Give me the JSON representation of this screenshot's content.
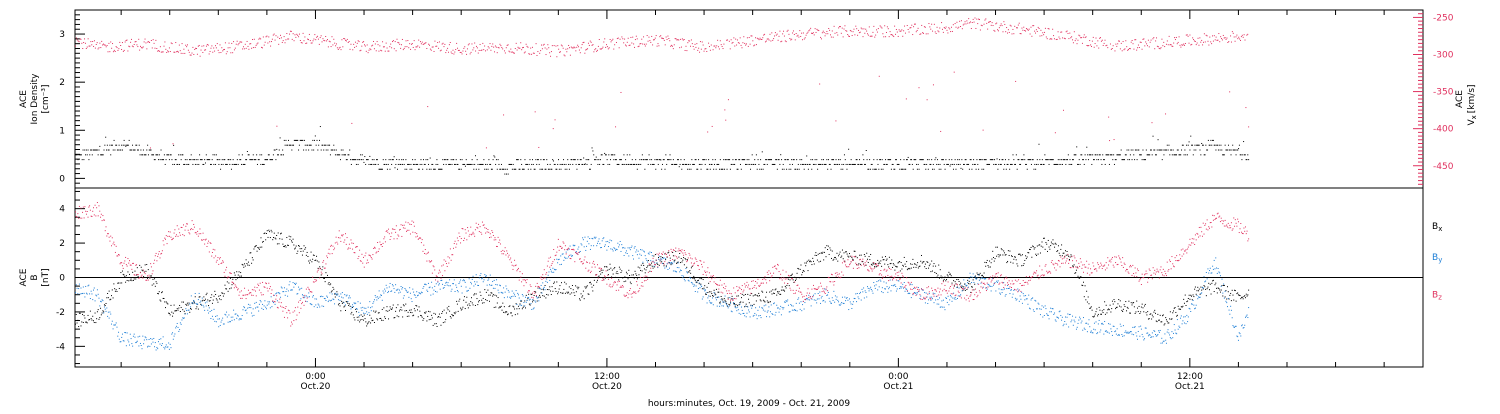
{
  "colors": {
    "density": "#000000",
    "vx": "#e0305e",
    "bx": "#000000",
    "by": "#1f7fd6",
    "bz": "#e0305e"
  },
  "xaxis": {
    "caption": "hours:minutes, Oct. 19, 2009 - Oct. 21, 2009",
    "unit": "hours since Oct. 19, 2009 00:00",
    "ticks": [
      {
        "x": 24,
        "time": "0:00",
        "date": "Oct.20"
      },
      {
        "x": 36,
        "time": "12:00",
        "date": "Oct.20"
      },
      {
        "x": 48,
        "time": "0:00",
        "date": "Oct.21"
      },
      {
        "x": 60,
        "time": "12:00",
        "date": "Oct.21"
      }
    ]
  },
  "chart_data": [
    {
      "type": "scatter",
      "xlim": [
        14.1,
        69.6
      ],
      "ylim_left": [
        -0.2,
        3.5
      ],
      "ylim_right": [
        -480,
        -240
      ],
      "left_label": [
        "ACE",
        "Ion Density",
        "[cm⁻³]"
      ],
      "right_label": [
        "ACE",
        "V",
        "x",
        "[km/s]"
      ],
      "left_ticks": [
        {
          "y": 0,
          "label": "0"
        },
        {
          "y": 1,
          "label": "1"
        },
        {
          "y": 2,
          "label": "2"
        },
        {
          "y": 3,
          "label": "3"
        }
      ],
      "right_ticks": [
        {
          "y": -250,
          "label": "-250"
        },
        {
          "y": -300,
          "label": "-300"
        },
        {
          "y": -350,
          "label": "-350"
        },
        {
          "y": -400,
          "label": "-400"
        },
        {
          "y": -450,
          "label": "-450"
        }
      ],
      "series": [
        {
          "key": "density",
          "axis": "left",
          "color": "#000000",
          "x": [
            14.1,
            16,
            18,
            20,
            22,
            23,
            24,
            26,
            28,
            30,
            32,
            34,
            36,
            38,
            40,
            42,
            44,
            46,
            48,
            50,
            52,
            54,
            56,
            58,
            60,
            61,
            62,
            62.4
          ],
          "y": [
            0.45,
            0.7,
            0.4,
            0.35,
            0.4,
            0.75,
            0.7,
            0.35,
            0.3,
            0.3,
            0.25,
            0.3,
            0.4,
            0.35,
            0.3,
            0.35,
            0.3,
            0.35,
            0.3,
            0.3,
            0.35,
            0.35,
            0.4,
            0.5,
            0.6,
            0.65,
            0.55,
            0.5
          ]
        },
        {
          "key": "vx",
          "axis": "right",
          "color": "#e0305e",
          "x": [
            14.1,
            15,
            17,
            19,
            21,
            23,
            24,
            26,
            28,
            30,
            32,
            34,
            36,
            38,
            40,
            42,
            44,
            46,
            48,
            50,
            51,
            53,
            55,
            57,
            59,
            61,
            62,
            62.4
          ],
          "y": [
            -280,
            -290,
            -285,
            -295,
            -288,
            -275,
            -280,
            -290,
            -285,
            -292,
            -290,
            -295,
            -285,
            -280,
            -290,
            -280,
            -272,
            -268,
            -268,
            -263,
            -257,
            -265,
            -275,
            -288,
            -283,
            -278,
            -275,
            -272
          ]
        }
      ]
    },
    {
      "type": "scatter",
      "xlim": [
        14.1,
        69.6
      ],
      "ylim": [
        -5.2,
        5.2
      ],
      "left_label": [
        "ACE",
        "B",
        "[nT]"
      ],
      "yticks": [
        {
          "y": -4,
          "label": "-4"
        },
        {
          "y": -2,
          "label": "-2"
        },
        {
          "y": 0,
          "label": "0"
        },
        {
          "y": 2,
          "label": "2"
        },
        {
          "y": 4,
          "label": "4"
        }
      ],
      "legend": [
        {
          "key": "bx",
          "base": "B",
          "sub": "x",
          "color": "#000000",
          "y": 3.0
        },
        {
          "key": "by",
          "base": "B",
          "sub": "y",
          "color": "#1f7fd6",
          "y": 1.2
        },
        {
          "key": "bz",
          "base": "B",
          "sub": "z",
          "color": "#e0305e",
          "y": -1.0
        }
      ],
      "series": [
        {
          "key": "bx",
          "color": "#000000",
          "x": [
            14.1,
            15,
            16,
            17,
            18,
            19,
            20,
            21,
            22,
            23,
            24,
            25,
            26,
            27,
            28,
            29,
            30,
            31,
            32,
            33,
            34,
            35,
            36,
            37,
            38,
            39,
            40,
            41,
            42,
            43,
            44,
            45,
            46,
            47,
            48,
            49,
            50,
            51,
            52,
            53,
            54,
            55,
            56,
            57,
            58,
            59,
            60,
            61,
            62,
            62.4
          ],
          "y": [
            -2.5,
            -2.2,
            0.0,
            0.5,
            -2.0,
            -1.5,
            -1.0,
            0.5,
            2.5,
            2.0,
            1.0,
            -1.5,
            -2.5,
            -2.0,
            -1.8,
            -2.5,
            -1.5,
            -1.0,
            -2.0,
            -1.0,
            -0.5,
            -1.0,
            0.5,
            0.0,
            1.0,
            1.2,
            -0.5,
            -1.5,
            -1.2,
            -1.0,
            0.5,
            1.5,
            1.2,
            1.0,
            0.8,
            1.0,
            0.0,
            -0.5,
            1.5,
            1.0,
            2.0,
            1.5,
            -2.0,
            -1.5,
            -1.8,
            -2.5,
            -1.0,
            -0.5,
            -1.2,
            -0.8
          ]
        },
        {
          "key": "by",
          "color": "#1f7fd6",
          "x": [
            14.1,
            15,
            16,
            17,
            18,
            19,
            20,
            21,
            22,
            23,
            24,
            25,
            26,
            27,
            28,
            29,
            30,
            31,
            32,
            33,
            34,
            35,
            36,
            37,
            38,
            39,
            40,
            41,
            42,
            43,
            44,
            45,
            46,
            47,
            48,
            49,
            50,
            51,
            52,
            53,
            54,
            55,
            56,
            57,
            58,
            59,
            60,
            61,
            62,
            62.4
          ],
          "y": [
            -0.5,
            -1.0,
            -3.5,
            -3.8,
            -3.8,
            -1.0,
            -2.5,
            -2.0,
            -1.5,
            -0.5,
            -1.5,
            -1.0,
            -2.0,
            -0.5,
            -1.0,
            -0.5,
            -0.5,
            0.0,
            -1.0,
            -1.5,
            1.0,
            2.0,
            2.0,
            1.5,
            1.0,
            0.5,
            -1.0,
            -1.5,
            -2.0,
            -1.8,
            -1.5,
            -1.0,
            -1.5,
            -0.5,
            -0.5,
            -1.0,
            -1.5,
            0.0,
            -0.5,
            -1.0,
            -2.0,
            -2.5,
            -2.8,
            -3.0,
            -3.2,
            -3.5,
            -2.0,
            1.0,
            -3.5,
            -2.0
          ]
        },
        {
          "key": "bz",
          "color": "#e0305e",
          "x": [
            14.1,
            15,
            16,
            17,
            18,
            19,
            20,
            21,
            22,
            23,
            24,
            25,
            26,
            27,
            28,
            29,
            30,
            31,
            32,
            33,
            34,
            35,
            36,
            37,
            38,
            39,
            40,
            41,
            42,
            43,
            44,
            45,
            46,
            47,
            48,
            49,
            50,
            51,
            52,
            53,
            54,
            55,
            56,
            57,
            58,
            59,
            60,
            61,
            62,
            62.4
          ],
          "y": [
            3.8,
            4.0,
            1.0,
            0.0,
            2.5,
            3.0,
            1.0,
            -1.0,
            -0.5,
            -2.5,
            0.0,
            2.5,
            1.0,
            2.5,
            3.0,
            0.0,
            2.5,
            3.0,
            1.0,
            -1.0,
            2.0,
            1.0,
            0.0,
            -1.0,
            1.0,
            1.5,
            0.5,
            -1.0,
            -0.5,
            0.5,
            -1.0,
            -0.5,
            1.0,
            0.5,
            0.0,
            -1.0,
            -0.5,
            -1.0,
            0.0,
            -0.5,
            0.5,
            1.0,
            0.5,
            1.0,
            0.0,
            0.5,
            2.0,
            3.5,
            3.0,
            2.5
          ]
        }
      ]
    }
  ]
}
